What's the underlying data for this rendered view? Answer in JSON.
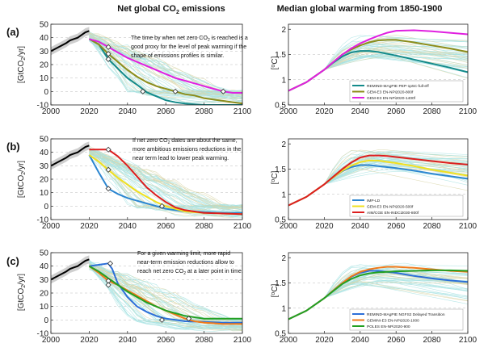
{
  "figure": {
    "col_titles": {
      "left_prefix": "Net global CO",
      "left_sub": "2",
      "left_suffix": " emissions",
      "right": "Median global warming from 1850-1900"
    },
    "row_labels": [
      "(a)",
      "(b)",
      "(c)"
    ],
    "left_ylabel": {
      "prefix": "[GtCO",
      "sub": "2",
      "suffix": "/yr]"
    },
    "right_ylabel": {
      "prefix": "[",
      "sup": "o",
      "suffix": "C]"
    },
    "annotations": [
      {
        "lines": [
          {
            "text": "The time by when net zero CO",
            "sub": "2",
            "tail": " is reached is a"
          },
          {
            "text": "good proxy for the level of peak warming if the"
          },
          {
            "text": "shape of emissions profiles is similar."
          }
        ]
      },
      {
        "lines": [
          {
            "text": "If net zero CO",
            "sub": "2",
            "tail": " dates are about the same,"
          },
          {
            "text": "more ambitious emissions reductions in the"
          },
          {
            "text": "near term lead to lower peak warming."
          }
        ]
      },
      {
        "lines": [
          {
            "text": "For a given warming limit, more rapid"
          },
          {
            "text": "near-term emission reductions allow to"
          },
          {
            "text": "reach net zero CO",
            "sub": "2",
            "tail": " at a later point in time."
          }
        ]
      }
    ]
  },
  "chart_data": [
    {
      "panel": "a",
      "side": "emissions",
      "type": "line",
      "xlim": [
        2000,
        2100
      ],
      "ylim": [
        -10,
        50
      ],
      "xticks": [
        2000,
        2020,
        2040,
        2060,
        2080,
        2100
      ],
      "yticks": [
        -10,
        0,
        10,
        20,
        30,
        40,
        50
      ],
      "history": {
        "x": [
          2000,
          2004,
          2008,
          2010,
          2012,
          2014,
          2016,
          2018,
          2020
        ],
        "y": [
          30,
          33,
          36,
          38,
          39,
          40,
          42,
          44,
          45
        ]
      },
      "series": [
        {
          "color": "#138a8a",
          "x": [
            2020,
            2025,
            2030,
            2035,
            2040,
            2045,
            2050,
            2055,
            2060,
            2065,
            2070,
            2075,
            2080,
            2090,
            2100
          ],
          "y": [
            39,
            35,
            24,
            17,
            10,
            5,
            -0.5,
            -3.5,
            -6.5,
            -8,
            -9,
            -9.5,
            -10,
            -10,
            -10
          ],
          "marker": {
            "x": 2048,
            "y": 0
          }
        },
        {
          "color": "#8c8c1a",
          "x": [
            2020,
            2025,
            2030,
            2035,
            2040,
            2045,
            2050,
            2055,
            2060,
            2065,
            2070,
            2075,
            2080,
            2090,
            2100
          ],
          "y": [
            39,
            35,
            28,
            22,
            16,
            11,
            7,
            4,
            2,
            0,
            -2,
            -3,
            -5,
            -7,
            -9
          ],
          "marker": {
            "x": 2065,
            "y": 0
          }
        },
        {
          "color": "#e020e0",
          "x": [
            2020,
            2025,
            2030,
            2035,
            2040,
            2045,
            2050,
            2055,
            2060,
            2065,
            2070,
            2075,
            2080,
            2085,
            2090,
            2095,
            2100
          ],
          "y": [
            39,
            37,
            33,
            29,
            25,
            22,
            19,
            16,
            13,
            10,
            8,
            6,
            4,
            2,
            0,
            -1,
            -1
          ],
          "marker": {
            "x": 2090,
            "y": 0
          }
        }
      ],
      "markers": [
        {
          "x": 2030,
          "y": 28
        },
        {
          "x": 2030,
          "y": 24
        },
        {
          "x": 2030,
          "y": 33
        }
      ]
    },
    {
      "panel": "a",
      "side": "warming",
      "type": "line",
      "xlim": [
        2000,
        2100
      ],
      "ylim": [
        0.5,
        2.1
      ],
      "xticks": [
        2000,
        2020,
        2040,
        2060,
        2080,
        2100
      ],
      "yticks": [
        0.5,
        1,
        1.5,
        2
      ],
      "legend": {
        "placement": "bottom-right",
        "entries": [
          "REMIND-MAgPIE PEP-1p5C-full-eff",
          "GEM-E3 EN-NPi2020-800f",
          "GEM-E3 EN-NPi2020-1400f"
        ]
      },
      "series": [
        {
          "color": "#138a8a",
          "x": [
            2000,
            2010,
            2020,
            2025,
            2030,
            2035,
            2040,
            2045,
            2050,
            2060,
            2070,
            2080,
            2090,
            2100
          ],
          "y": [
            0.78,
            0.95,
            1.2,
            1.34,
            1.46,
            1.54,
            1.57,
            1.57,
            1.55,
            1.48,
            1.4,
            1.32,
            1.24,
            1.15
          ]
        },
        {
          "color": "#8c8c1a",
          "x": [
            2000,
            2010,
            2020,
            2025,
            2030,
            2035,
            2040,
            2045,
            2050,
            2055,
            2060,
            2070,
            2080,
            2090,
            2100
          ],
          "y": [
            0.78,
            0.95,
            1.2,
            1.35,
            1.5,
            1.6,
            1.68,
            1.74,
            1.78,
            1.79,
            1.79,
            1.74,
            1.68,
            1.62,
            1.55
          ]
        },
        {
          "color": "#e020e0",
          "x": [
            2000,
            2010,
            2020,
            2025,
            2030,
            2035,
            2040,
            2045,
            2050,
            2055,
            2060,
            2070,
            2080,
            2090,
            2100
          ],
          "y": [
            0.78,
            0.95,
            1.2,
            1.35,
            1.5,
            1.62,
            1.72,
            1.8,
            1.87,
            1.93,
            1.97,
            1.98,
            1.96,
            1.93,
            1.9
          ]
        }
      ]
    },
    {
      "panel": "b",
      "side": "emissions",
      "type": "line",
      "xlim": [
        2000,
        2100
      ],
      "ylim": [
        -10,
        50
      ],
      "xticks": [
        2000,
        2020,
        2040,
        2060,
        2080,
        2100
      ],
      "yticks": [
        -10,
        0,
        10,
        20,
        30,
        40,
        50
      ],
      "history": {
        "x": [
          2000,
          2004,
          2008,
          2010,
          2012,
          2014,
          2016,
          2018,
          2020
        ],
        "y": [
          30,
          33,
          36,
          38,
          39,
          40,
          42,
          44,
          45
        ]
      },
      "series": [
        {
          "color": "#2c86d0",
          "x": [
            2020,
            2025,
            2030,
            2035,
            2040,
            2045,
            2050,
            2055,
            2060,
            2065,
            2070,
            2080,
            2090,
            2100
          ],
          "y": [
            38,
            25,
            13,
            9,
            6,
            4,
            2,
            0,
            -2,
            -3,
            -4,
            -4.5,
            -5,
            -5
          ]
        },
        {
          "color": "#f0e020",
          "x": [
            2020,
            2025,
            2030,
            2035,
            2040,
            2045,
            2050,
            2055,
            2060,
            2065,
            2070,
            2080,
            2090,
            2100
          ],
          "y": [
            38,
            33,
            27,
            21,
            16,
            11,
            7,
            3,
            0,
            -2,
            -4,
            -5,
            -5.5,
            -6
          ]
        },
        {
          "color": "#dd1e1e",
          "x": [
            2020,
            2025,
            2030,
            2035,
            2040,
            2045,
            2050,
            2055,
            2060,
            2065,
            2070,
            2080,
            2090,
            2100
          ],
          "y": [
            42,
            42,
            42,
            37,
            30,
            22,
            14,
            8,
            3,
            -1,
            -3,
            -5,
            -5.5,
            -6
          ]
        }
      ],
      "markers": [
        {
          "x": 2030,
          "y": 13
        },
        {
          "x": 2030,
          "y": 27
        },
        {
          "x": 2030,
          "y": 42
        },
        {
          "x": 2058,
          "y": 0
        }
      ]
    },
    {
      "panel": "b",
      "side": "warming",
      "type": "line",
      "xlim": [
        2000,
        2100
      ],
      "ylim": [
        0.5,
        2.1
      ],
      "xticks": [
        2000,
        2020,
        2040,
        2060,
        2080,
        2100
      ],
      "yticks": [
        0.5,
        1,
        1.5,
        2
      ],
      "legend": {
        "placement": "bottom-right",
        "entries": [
          "IMP-LD",
          "GEM-E3 EN-NPi2020-500f",
          "AIM/CGE EN-INDCi2030-800f"
        ]
      },
      "series": [
        {
          "color": "#2c86d0",
          "x": [
            2000,
            2010,
            2020,
            2025,
            2030,
            2035,
            2040,
            2045,
            2050,
            2060,
            2070,
            2080,
            2090,
            2100
          ],
          "y": [
            0.78,
            0.95,
            1.2,
            1.34,
            1.46,
            1.54,
            1.58,
            1.58,
            1.56,
            1.52,
            1.47,
            1.41,
            1.36,
            1.31
          ]
        },
        {
          "color": "#f0e020",
          "x": [
            2000,
            2010,
            2020,
            2025,
            2030,
            2035,
            2040,
            2045,
            2050,
            2060,
            2070,
            2080,
            2090,
            2100
          ],
          "y": [
            0.78,
            0.95,
            1.2,
            1.34,
            1.47,
            1.57,
            1.64,
            1.67,
            1.67,
            1.62,
            1.56,
            1.49,
            1.43,
            1.37
          ]
        },
        {
          "color": "#dd1e1e",
          "x": [
            2000,
            2010,
            2020,
            2025,
            2030,
            2035,
            2040,
            2045,
            2050,
            2055,
            2060,
            2070,
            2080,
            2090,
            2100
          ],
          "y": [
            0.78,
            0.95,
            1.2,
            1.35,
            1.5,
            1.63,
            1.73,
            1.77,
            1.77,
            1.76,
            1.74,
            1.7,
            1.66,
            1.62,
            1.59
          ]
        }
      ]
    },
    {
      "panel": "c",
      "side": "emissions",
      "type": "line",
      "xlim": [
        2000,
        2100
      ],
      "ylim": [
        -10,
        50
      ],
      "xticks": [
        2000,
        2020,
        2040,
        2060,
        2080,
        2100
      ],
      "yticks": [
        -10,
        0,
        10,
        20,
        30,
        40,
        50
      ],
      "history": {
        "x": [
          2000,
          2004,
          2008,
          2010,
          2012,
          2014,
          2016,
          2018,
          2020
        ],
        "y": [
          30,
          33,
          36,
          38,
          39,
          40,
          42,
          44,
          45
        ]
      },
      "series": [
        {
          "color": "#2c6fd8",
          "x": [
            2020,
            2025,
            2030,
            2032,
            2035,
            2040,
            2045,
            2050,
            2055,
            2060,
            2065,
            2070,
            2080,
            2090,
            2100
          ],
          "y": [
            40,
            41,
            42,
            38,
            27,
            17,
            10,
            6,
            3,
            1,
            0,
            -1,
            -1.5,
            -2,
            -2
          ]
        },
        {
          "color": "#ef7a1a",
          "x": [
            2020,
            2025,
            2030,
            2035,
            2040,
            2045,
            2050,
            2055,
            2060,
            2065,
            2070,
            2075,
            2080,
            2090,
            2100
          ],
          "y": [
            40,
            35,
            29,
            26,
            22,
            18,
            14,
            10,
            7,
            4,
            1,
            -1,
            -2,
            -3,
            -3
          ]
        },
        {
          "color": "#22a022",
          "x": [
            2020,
            2025,
            2030,
            2035,
            2040,
            2045,
            2050,
            2055,
            2060,
            2065,
            2070,
            2075,
            2080,
            2090,
            2100
          ],
          "y": [
            40,
            36,
            31,
            26,
            21,
            17,
            13,
            10,
            7,
            5,
            3,
            2,
            1,
            1,
            1
          ]
        }
      ],
      "markers": [
        {
          "x": 2031,
          "y": 42
        },
        {
          "x": 2030,
          "y": 29
        },
        {
          "x": 2030,
          "y": 26
        },
        {
          "x": 2058,
          "y": 0
        },
        {
          "x": 2072,
          "y": 1
        }
      ]
    },
    {
      "panel": "c",
      "side": "warming",
      "type": "line",
      "xlim": [
        2000,
        2100
      ],
      "ylim": [
        0.5,
        2.1
      ],
      "xticks": [
        2000,
        2020,
        2040,
        2060,
        2080,
        2100
      ],
      "yticks": [
        0.5,
        1,
        1.5,
        2
      ],
      "legend": {
        "placement": "bottom-right",
        "entries": [
          "REMIND-MAgPIE NGFS2 Delayed Transition",
          "GEMINI-E3 EN-NPi2020-1000",
          "POLES EN-NPi2020-900"
        ]
      },
      "series": [
        {
          "color": "#2c6fd8",
          "x": [
            2000,
            2010,
            2020,
            2025,
            2030,
            2035,
            2040,
            2045,
            2050,
            2060,
            2070,
            2080,
            2090,
            2100
          ],
          "y": [
            0.78,
            0.95,
            1.2,
            1.35,
            1.5,
            1.62,
            1.7,
            1.74,
            1.74,
            1.7,
            1.64,
            1.59,
            1.55,
            1.52
          ]
        },
        {
          "color": "#ef7a1a",
          "x": [
            2000,
            2010,
            2020,
            2025,
            2030,
            2035,
            2040,
            2045,
            2050,
            2055,
            2060,
            2070,
            2080,
            2090,
            2100
          ],
          "y": [
            0.78,
            0.95,
            1.2,
            1.35,
            1.5,
            1.63,
            1.72,
            1.77,
            1.8,
            1.82,
            1.82,
            1.8,
            1.77,
            1.74,
            1.72
          ]
        },
        {
          "color": "#22a022",
          "x": [
            2000,
            2010,
            2020,
            2025,
            2030,
            2035,
            2040,
            2045,
            2050,
            2060,
            2070,
            2080,
            2090,
            2100
          ],
          "y": [
            0.78,
            0.95,
            1.2,
            1.34,
            1.48,
            1.58,
            1.65,
            1.69,
            1.71,
            1.73,
            1.74,
            1.75,
            1.75,
            1.74
          ]
        }
      ]
    }
  ]
}
